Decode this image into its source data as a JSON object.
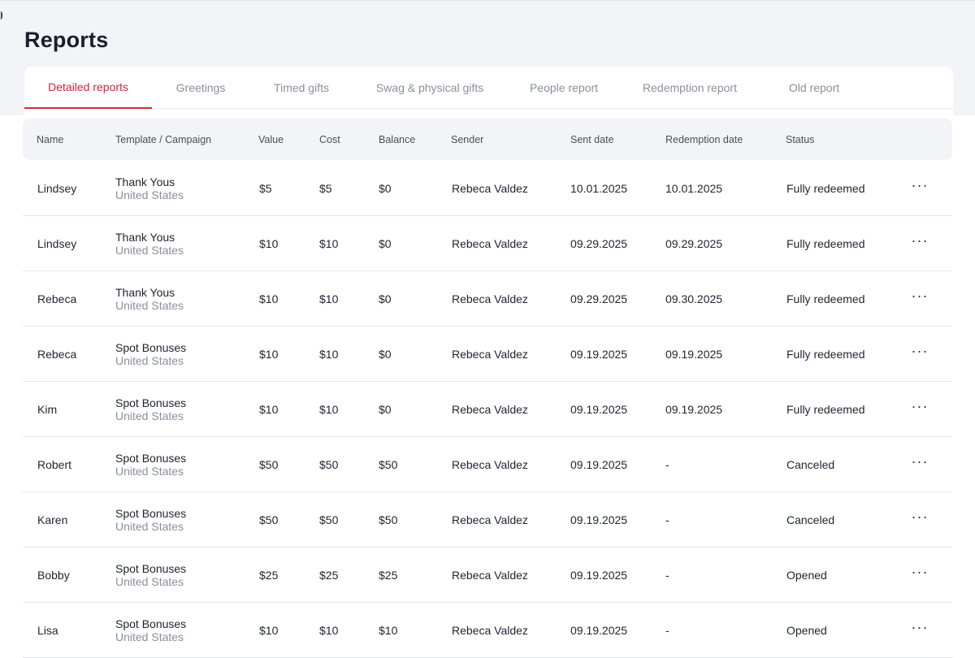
{
  "page": {
    "title": "Reports"
  },
  "tabs": [
    {
      "label": "Detailed reports",
      "active": true
    },
    {
      "label": "Greetings",
      "active": false
    },
    {
      "label": "Timed gifts",
      "active": false
    },
    {
      "label": "Swag & physical gifts",
      "active": false
    },
    {
      "label": "People report",
      "active": false
    },
    {
      "label": "Redemption report",
      "active": false
    },
    {
      "label": "Old report",
      "active": false
    }
  ],
  "colors": {
    "accent": "#d9233a",
    "header_bg": "#f3f4f7",
    "muted_text": "#8b8f9c"
  },
  "table": {
    "columns": [
      "Name",
      "Template / Campaign",
      "Value",
      "Cost",
      "Balance",
      "Sender",
      "Sent date",
      "Redemption date",
      "Status"
    ],
    "more_icon": "more-horizontal-icon",
    "rows": [
      {
        "name": "Lindsey",
        "campaign": "Thank Yous",
        "region": "United States",
        "value": "$5",
        "cost": "$5",
        "balance": "$0",
        "sender": "Rebeca Valdez",
        "sent_date": "10.01.2025",
        "redemption_date": "10.01.2025",
        "status": "Fully redeemed"
      },
      {
        "name": "Lindsey",
        "campaign": "Thank Yous",
        "region": "United States",
        "value": "$10",
        "cost": "$10",
        "balance": "$0",
        "sender": "Rebeca Valdez",
        "sent_date": "09.29.2025",
        "redemption_date": "09.29.2025",
        "status": "Fully redeemed"
      },
      {
        "name": "Rebeca",
        "campaign": "Thank Yous",
        "region": "United States",
        "value": "$10",
        "cost": "$10",
        "balance": "$0",
        "sender": "Rebeca Valdez",
        "sent_date": "09.29.2025",
        "redemption_date": "09.30.2025",
        "status": "Fully redeemed"
      },
      {
        "name": "Rebeca",
        "campaign": "Spot Bonuses",
        "region": "United States",
        "value": "$10",
        "cost": "$10",
        "balance": "$0",
        "sender": "Rebeca Valdez",
        "sent_date": "09.19.2025",
        "redemption_date": "09.19.2025",
        "status": "Fully redeemed"
      },
      {
        "name": "Kim",
        "campaign": "Spot Bonuses",
        "region": "United States",
        "value": "$10",
        "cost": "$10",
        "balance": "$0",
        "sender": "Rebeca Valdez",
        "sent_date": "09.19.2025",
        "redemption_date": "09.19.2025",
        "status": "Fully redeemed"
      },
      {
        "name": "Robert",
        "campaign": "Spot Bonuses",
        "region": "United States",
        "value": "$50",
        "cost": "$50",
        "balance": "$50",
        "sender": "Rebeca Valdez",
        "sent_date": "09.19.2025",
        "redemption_date": "-",
        "status": "Canceled"
      },
      {
        "name": "Karen",
        "campaign": "Spot Bonuses",
        "region": "United States",
        "value": "$50",
        "cost": "$50",
        "balance": "$50",
        "sender": "Rebeca Valdez",
        "sent_date": "09.19.2025",
        "redemption_date": "-",
        "status": "Canceled"
      },
      {
        "name": "Bobby",
        "campaign": "Spot Bonuses",
        "region": "United States",
        "value": "$25",
        "cost": "$25",
        "balance": "$25",
        "sender": "Rebeca Valdez",
        "sent_date": "09.19.2025",
        "redemption_date": "-",
        "status": "Opened"
      },
      {
        "name": "Lisa",
        "campaign": "Spot Bonuses",
        "region": "United States",
        "value": "$10",
        "cost": "$10",
        "balance": "$10",
        "sender": "Rebeca Valdez",
        "sent_date": "09.19.2025",
        "redemption_date": "-",
        "status": "Opened"
      }
    ]
  }
}
